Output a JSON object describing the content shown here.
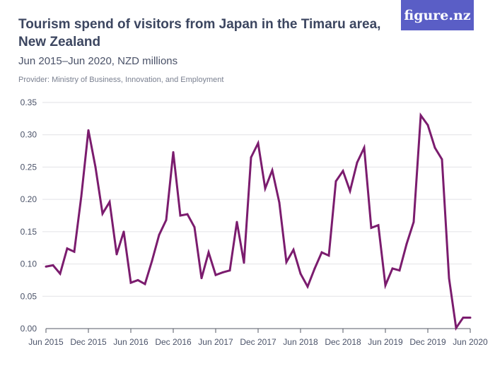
{
  "logo": "figure.nz",
  "title": "Tourism spend of visitors from Japan in the Timaru area, New Zealand",
  "subtitle": "Jun 2015–Jun 2020, NZD millions",
  "provider": "Provider: Ministry of Business, Innovation, and Employment",
  "colors": {
    "line": "#7b1c6e",
    "grid": "#e2e2e6",
    "logo_bg": "#5a5ec6"
  },
  "chart_data": {
    "type": "line",
    "title": "Tourism spend of visitors from Japan in the Timaru area, New Zealand",
    "xlabel": "",
    "ylabel": "",
    "ylim": [
      0,
      0.35
    ],
    "grid": true,
    "y_ticks": [
      "0.00",
      "0.05",
      "0.10",
      "0.15",
      "0.20",
      "0.25",
      "0.30",
      "0.35"
    ],
    "x_ticks": [
      "Jun 2015",
      "Dec 2015",
      "Jun 2016",
      "Dec 2016",
      "Jun 2017",
      "Dec 2017",
      "Jun 2018",
      "Dec 2018",
      "Jun 2019",
      "Dec 2019",
      "Jun 2020"
    ],
    "x_start": "Jun 2015",
    "x_interval": "monthly",
    "series": [
      {
        "values": [
          0.096,
          0.098,
          0.085,
          0.124,
          0.119,
          0.205,
          0.307,
          0.25,
          0.178,
          0.196,
          0.115,
          0.15,
          0.071,
          0.075,
          0.069,
          0.105,
          0.145,
          0.168,
          0.273,
          0.175,
          0.177,
          0.157,
          0.078,
          0.118,
          0.083,
          0.087,
          0.09,
          0.165,
          0.102,
          0.265,
          0.287,
          0.217,
          0.245,
          0.195,
          0.103,
          0.122,
          0.085,
          0.065,
          0.093,
          0.118,
          0.113,
          0.228,
          0.244,
          0.213,
          0.257,
          0.28,
          0.156,
          0.16,
          0.067,
          0.093,
          0.09,
          0.131,
          0.165,
          0.33,
          0.315,
          0.28,
          0.262,
          0.078,
          0.001,
          0.017,
          0.017
        ]
      }
    ]
  }
}
